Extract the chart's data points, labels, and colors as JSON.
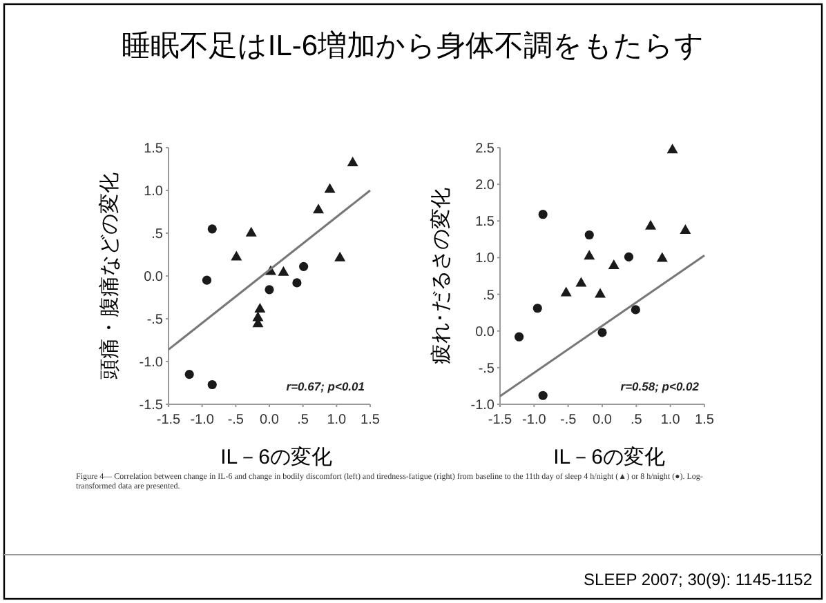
{
  "chart_data": [
    {
      "type": "scatter",
      "title": "睡眠不足はIL-6増加から身体不調をもたらす",
      "xlabel": "IL－6の変化",
      "ylabel": "頭痛・腹痛などの変化",
      "xlim": [
        -1.5,
        1.5
      ],
      "ylim": [
        -1.5,
        1.5
      ],
      "xticks": [
        {
          "value": -1.5,
          "label": "-1.5"
        },
        {
          "value": -1,
          "label": "-1.0"
        },
        {
          "value": -0.5,
          "label": "-.5"
        },
        {
          "value": 0,
          "label": "0.0"
        },
        {
          "value": 0.5,
          "label": ".5"
        },
        {
          "value": 1,
          "label": "1.0"
        },
        {
          "value": 1.5,
          "label": "1.5"
        }
      ],
      "yticks": [
        -1.5,
        {
          "value": -1,
          "label": "-1.0"
        },
        {
          "value": -0.5,
          "label": "-.5"
        },
        {
          "value": 0,
          "label": "0.0"
        },
        {
          "value": 0.5,
          "label": ".5"
        },
        {
          "value": 1,
          "label": "1.0"
        },
        1.5
      ],
      "grid": false,
      "series": [
        {
          "type": "scatter",
          "marker": "triangle",
          "color": "#1a1a1a",
          "x": [
            -0.27,
            -0.49,
            0.02,
            0.21,
            -0.14,
            -0.17,
            -0.17,
            0.73,
            0.9,
            1.24,
            1.05
          ],
          "values": [
            0.51,
            0.23,
            0.06,
            0.05,
            -0.38,
            -0.48,
            -0.55,
            0.78,
            1.02,
            1.33,
            0.22
          ]
        },
        {
          "type": "scatter",
          "marker": "circle",
          "color": "#1a1a1a",
          "x": [
            -0.85,
            -0.93,
            -1.19,
            -0.85,
            0.51,
            0.41,
            0.0
          ],
          "values": [
            0.55,
            -0.05,
            -1.15,
            -1.27,
            0.11,
            -0.08,
            -0.16
          ]
        },
        {
          "type": "line",
          "marker": "none",
          "color": "#777777",
          "x": [
            -1.5,
            1.5
          ],
          "values": [
            -0.86,
            1.0
          ]
        }
      ],
      "annotations": [
        "r=0.67; p<0.01",
        "Figure 4— Correlation between change in IL-6 and change in bodily discomfort (left) and tiredness-fatigue (right) from baseline to the 11th day of sleep 4 h/night (▲) or 8 h/night (●). Log-transformed data are presented.",
        "SLEEP 2007; 30(9): 1145-1152"
      ]
    },
    {
      "type": "scatter",
      "xlabel": "IL－6の変化",
      "ylabel": "疲れ･だるさの変化",
      "xlim": [
        -1.5,
        1.5
      ],
      "ylim": [
        -1,
        2.5
      ],
      "xticks": [
        {
          "value": -1.5,
          "label": "-1.5"
        },
        {
          "value": -1,
          "label": "-1.0"
        },
        {
          "value": -0.5,
          "label": "-.5"
        },
        {
          "value": 0,
          "label": "0.0"
        },
        {
          "value": 0.5,
          "label": ".5"
        },
        {
          "value": 1,
          "label": "1.0"
        },
        {
          "value": 1.5,
          "label": "1.5"
        }
      ],
      "yticks": [
        {
          "value": -1,
          "label": "-1.0"
        },
        {
          "value": -0.5,
          "label": "-.5"
        },
        {
          "value": 0,
          "label": "0.0"
        },
        {
          "value": 0.5,
          "label": ".5"
        },
        {
          "value": 1,
          "label": "1.0"
        },
        1.5,
        {
          "value": 2,
          "label": "2.0"
        },
        2.5
      ],
      "grid": false,
      "series": [
        {
          "type": "scatter",
          "marker": "triangle",
          "color": "#1a1a1a",
          "x": [
            -0.19,
            0.17,
            -0.31,
            -0.53,
            -0.03,
            0.71,
            0.88,
            1.22,
            1.03
          ],
          "values": [
            1.03,
            0.9,
            0.66,
            0.53,
            0.51,
            1.44,
            1.0,
            1.38,
            2.48
          ]
        },
        {
          "type": "scatter",
          "marker": "circle",
          "color": "#1a1a1a",
          "x": [
            -0.87,
            -0.95,
            -1.22,
            -0.87,
            -0.19,
            0.39,
            0.49,
            0.0
          ],
          "values": [
            1.59,
            0.31,
            -0.08,
            -0.88,
            1.31,
            1.01,
            0.29,
            -0.02
          ]
        },
        {
          "type": "line",
          "marker": "none",
          "color": "#777777",
          "x": [
            -1.5,
            1.5
          ],
          "values": [
            -0.89,
            1.03
          ]
        }
      ],
      "annotations": [
        "r=0.58; p<0.02"
      ]
    }
  ]
}
